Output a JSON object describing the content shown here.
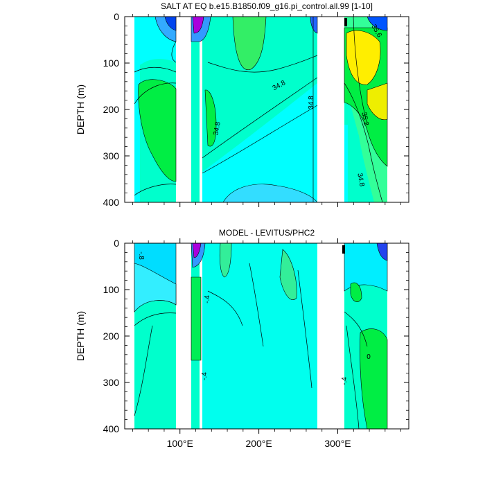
{
  "chart_data": [
    {
      "type": "heatmap",
      "title": "SALT AT EQ b.e15.B1850.f09_g16.pi_control.all.99 [1-10]",
      "ylabel": "DEPTH (m)",
      "xlabel": "",
      "xlim": [
        30,
        390
      ],
      "ylim": [
        400,
        0
      ],
      "y_inverted": true,
      "y_ticks": [
        "0",
        "100",
        "200",
        "300",
        "400"
      ],
      "y_tick_values": [
        0,
        100,
        200,
        300,
        400
      ],
      "x_tick_values": [
        100,
        200,
        300
      ],
      "x_tick_labels": [
        "",
        "",
        ""
      ],
      "ocean_segments": [
        [
          44,
          98
        ],
        [
          118,
          128
        ],
        [
          132,
          280
        ],
        [
          316,
          368
        ]
      ],
      "colors": {
        "base": "#00ffff",
        "mid": "#00ffcc",
        "light_green": "#33ff99",
        "green": "#00ee44",
        "yellow": "#ffee00",
        "orange": "#ffcc00",
        "blue": "#0066ff",
        "dark_blue": "#0000cc",
        "purple": "#9900cc",
        "magenta": "#cc00ff"
      },
      "contour_labels": [
        {
          "text": "34.8",
          "lon": 197,
          "depth": 150
        },
        {
          "text": "34.8",
          "lon": 263,
          "depth": 180
        },
        {
          "text": "34.8",
          "lon": 147,
          "depth": 238
        },
        {
          "text": "35.6",
          "lon": 345,
          "depth": 35
        },
        {
          "text": "35.2",
          "lon": 335,
          "depth": 228
        },
        {
          "text": "34.8",
          "lon": 330,
          "depth": 350
        }
      ]
    },
    {
      "type": "heatmap",
      "title": "MODEL - LEVITUS/PHC2",
      "ylabel": "DEPTH (m)",
      "xlabel": "",
      "xlim": [
        30,
        390
      ],
      "ylim": [
        400,
        0
      ],
      "y_inverted": true,
      "y_ticks": [
        "0",
        "100",
        "200",
        "300",
        "400"
      ],
      "y_tick_values": [
        0,
        100,
        200,
        300,
        400
      ],
      "x_tick_values": [
        100,
        200,
        300
      ],
      "x_tick_labels": [
        "100°E",
        "200°E",
        "300°E"
      ],
      "ocean_segments": [
        [
          44,
          98
        ],
        [
          118,
          128
        ],
        [
          132,
          280
        ],
        [
          316,
          368
        ]
      ],
      "contour_labels": [
        {
          "text": "-.8",
          "lon": 50,
          "depth": 25
        },
        {
          "text": "-.4",
          "lon": 132,
          "depth": 125
        },
        {
          "text": "-.4",
          "lon": 132,
          "depth": 295
        },
        {
          "text": "-.4",
          "lon": 320,
          "depth": 300
        },
        {
          "text": "0",
          "lon": 345,
          "depth": 255
        }
      ]
    }
  ]
}
